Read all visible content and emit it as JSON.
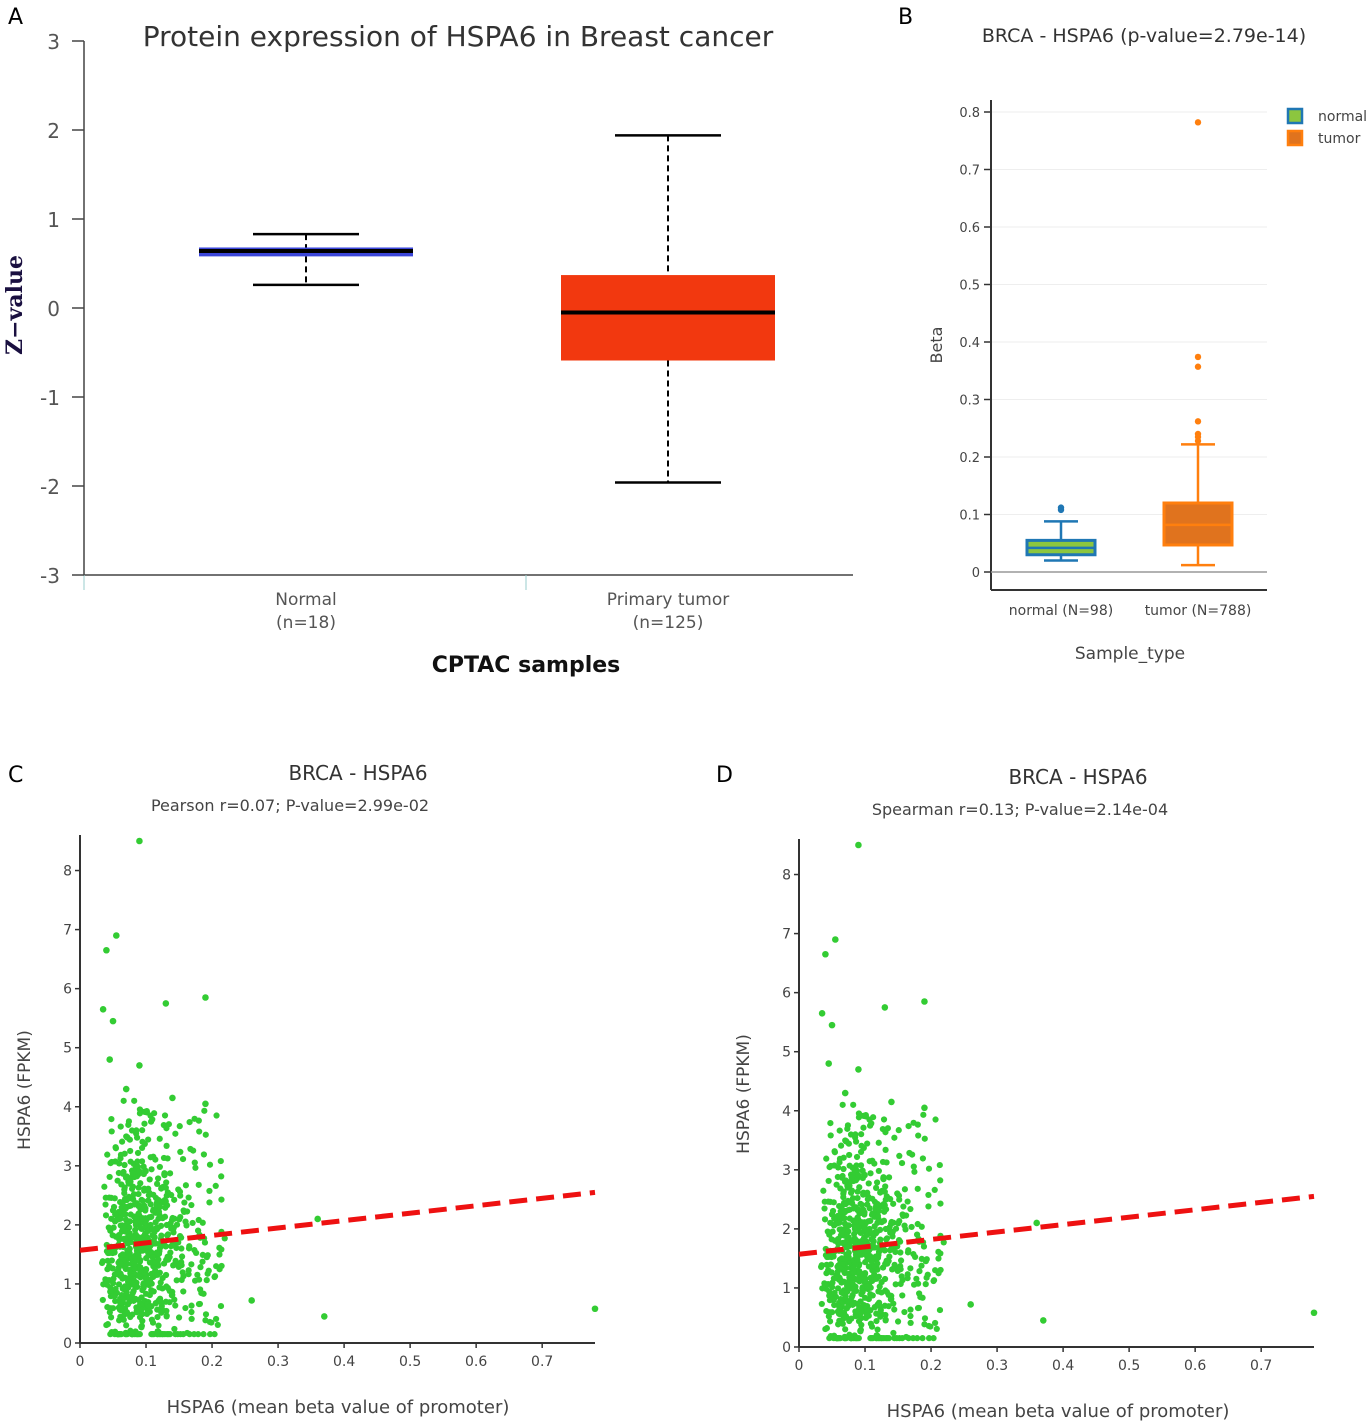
{
  "colors": {
    "normal_box_a": "#3b46d9",
    "tumor_box_a": "#f2380f",
    "normal_b": "#1f77b4",
    "normal_b_fill": "#8cc63f",
    "tumor_b": "#ff7f0e",
    "tumor_b_fill": "#e0731e",
    "scatter": "#33cc33",
    "fit": "#ee1111"
  },
  "chart_data": [
    {
      "panel": "A",
      "type": "box",
      "title": "Protein expression of HSPA6 in Breast cancer",
      "xlabel": "CPTAC samples",
      "ylabel": "Z−value",
      "ylim": [
        -3,
        3
      ],
      "yticks": [
        "3",
        "2",
        "1",
        "0",
        "-1",
        "-2",
        "-3"
      ],
      "yticks_values": [
        3,
        2,
        1,
        0,
        -1,
        -2,
        -3
      ],
      "groups": [
        {
          "name": "Normal",
          "n_label": "(n=18)",
          "min": 0.26,
          "q1": 0.58,
          "median": 0.64,
          "q3": 0.68,
          "max": 0.83
        },
        {
          "name": "Primary tumor",
          "n_label": "(n=125)",
          "min": -1.96,
          "q1": -0.59,
          "median": -0.05,
          "q3": 0.37,
          "max": 1.94
        }
      ]
    },
    {
      "panel": "B",
      "type": "box",
      "title": "BRCA - HSPA6 (p-value=2.79e-14)",
      "xlabel": "Sample_type",
      "ylabel": "Beta",
      "ylim": [
        0,
        0.8
      ],
      "yticks": [
        "0.8",
        "0.7",
        "0.6",
        "0.5",
        "0.4",
        "0.3",
        "0.2",
        "0.1",
        "0"
      ],
      "yticks_values": [
        0.8,
        0.7,
        0.6,
        0.5,
        0.4,
        0.3,
        0.2,
        0.1,
        0
      ],
      "legend": [
        "normal",
        "tumor"
      ],
      "groups": [
        {
          "name": "normal (N=98)",
          "min": 0.02,
          "q1": 0.03,
          "median": 0.042,
          "q3": 0.055,
          "max": 0.088,
          "outliers": [
            0.108,
            0.112
          ]
        },
        {
          "name": "tumor (N=788)",
          "min": 0.012,
          "q1": 0.047,
          "median": 0.082,
          "q3": 0.12,
          "max": 0.222,
          "outliers": [
            0.228,
            0.235,
            0.24,
            0.262,
            0.357,
            0.374,
            0.782
          ]
        }
      ]
    },
    {
      "panel": "C",
      "type": "scatter",
      "title": "BRCA - HSPA6",
      "subtitle": "Pearson r=0.07; P-value=2.99e-02",
      "xlabel": "HSPA6 (mean beta value of promoter)",
      "ylabel": "HSPA6 (FPKM)",
      "xlim": [
        0,
        0.78
      ],
      "ylim": [
        0,
        8.5
      ],
      "xticks": [
        "0",
        "0.1",
        "0.2",
        "0.3",
        "0.4",
        "0.5",
        "0.6",
        "0.7"
      ],
      "xticks_values": [
        0,
        0.1,
        0.2,
        0.3,
        0.4,
        0.5,
        0.6,
        0.7
      ],
      "yticks": [
        "0",
        "1",
        "2",
        "3",
        "4",
        "5",
        "6",
        "7",
        "8"
      ],
      "yticks_values": [
        0,
        1,
        2,
        3,
        4,
        5,
        6,
        7,
        8
      ],
      "fit_line": {
        "x": [
          0,
          0.78
        ],
        "y": [
          1.57,
          2.55
        ]
      },
      "highlight_points": [
        [
          0.09,
          8.5
        ],
        [
          0.055,
          6.9
        ],
        [
          0.04,
          6.65
        ],
        [
          0.035,
          5.65
        ],
        [
          0.05,
          5.45
        ],
        [
          0.13,
          5.75
        ],
        [
          0.19,
          5.85
        ],
        [
          0.045,
          4.8
        ],
        [
          0.09,
          4.7
        ],
        [
          0.07,
          4.3
        ],
        [
          0.14,
          4.15
        ],
        [
          0.19,
          4.05
        ],
        [
          0.36,
          2.1
        ],
        [
          0.37,
          0.45
        ],
        [
          0.26,
          0.72
        ],
        [
          0.78,
          0.58
        ]
      ]
    },
    {
      "panel": "D",
      "type": "scatter",
      "title": "BRCA - HSPA6",
      "subtitle": "Spearman r=0.13; P-value=2.14e-04",
      "xlabel": "HSPA6 (mean beta value of promoter)",
      "ylabel": "HSPA6 (FPKM)",
      "xlim": [
        0,
        0.78
      ],
      "ylim": [
        0,
        8.5
      ],
      "xticks": [
        "0",
        "0.1",
        "0.2",
        "0.3",
        "0.4",
        "0.5",
        "0.6",
        "0.7"
      ],
      "xticks_values": [
        0,
        0.1,
        0.2,
        0.3,
        0.4,
        0.5,
        0.6,
        0.7
      ],
      "yticks": [
        "0",
        "1",
        "2",
        "3",
        "4",
        "5",
        "6",
        "7",
        "8"
      ],
      "yticks_values": [
        0,
        1,
        2,
        3,
        4,
        5,
        6,
        7,
        8
      ],
      "fit_line": {
        "x": [
          0,
          0.78
        ],
        "y": [
          1.57,
          2.55
        ]
      },
      "highlight_points": [
        [
          0.09,
          8.5
        ],
        [
          0.055,
          6.9
        ],
        [
          0.04,
          6.65
        ],
        [
          0.035,
          5.65
        ],
        [
          0.05,
          5.45
        ],
        [
          0.13,
          5.75
        ],
        [
          0.19,
          5.85
        ],
        [
          0.045,
          4.8
        ],
        [
          0.09,
          4.7
        ],
        [
          0.07,
          4.3
        ],
        [
          0.14,
          4.15
        ],
        [
          0.19,
          4.05
        ],
        [
          0.36,
          2.1
        ],
        [
          0.37,
          0.45
        ],
        [
          0.26,
          0.72
        ],
        [
          0.78,
          0.58
        ]
      ]
    }
  ],
  "panels": {
    "a": {
      "letter": "A",
      "title": "Protein expression of HSPA6 in Breast cancer",
      "ylabel": "Z−value",
      "xlabel": "CPTAC samples",
      "group1_name": "Normal",
      "group1_n": "(n=18)",
      "group2_name": "Primary tumor",
      "group2_n": "(n=125)"
    },
    "b": {
      "letter": "B",
      "title": "BRCA - HSPA6 (p-value=2.79e-14)",
      "ylabel": "Beta",
      "xlabel": "Sample_type",
      "group1_name": "normal (N=98)",
      "group2_name": "tumor (N=788)",
      "legend_normal": "normal",
      "legend_tumor": "tumor"
    },
    "c": {
      "letter": "C",
      "title": "BRCA - HSPA6",
      "subtitle": "Pearson r=0.07; P-value=2.99e-02",
      "ylabel": "HSPA6 (FPKM)",
      "xlabel": "HSPA6 (mean beta value of promoter)"
    },
    "d": {
      "letter": "D",
      "title": "BRCA - HSPA6",
      "subtitle": "Spearman r=0.13; P-value=2.14e-04",
      "ylabel": "HSPA6 (FPKM)",
      "xlabel": "HSPA6 (mean beta value of promoter)"
    }
  }
}
